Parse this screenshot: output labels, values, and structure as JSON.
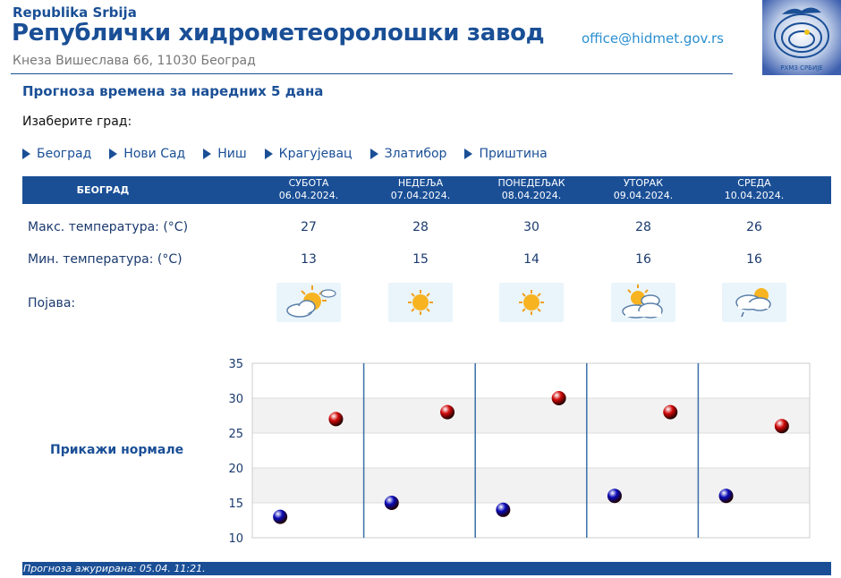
{
  "header": {
    "org_small": "Republika Srbija",
    "org_name": "Републички хидрометеоролошки завод",
    "address": "Кнеза Вишеслава 66, 11030 Београд",
    "email": "office@hidmet.gov.rs",
    "logo_text": "РХМЗ СРБИЈЕ"
  },
  "page_title": "Прогноза времена за наредних 5 дана",
  "choose_city_label": "Изаберите град:",
  "cities": [
    "Београд",
    "Нови Сад",
    "Ниш",
    "Крагујевац",
    "Златибор",
    "Приштина"
  ],
  "forecast": {
    "city": "БЕОГРАД",
    "days": [
      {
        "name": "СУБОТА",
        "date": "06.04.2024.",
        "max": "27",
        "min": "13",
        "icon": "sun-cloud-icon"
      },
      {
        "name": "НЕДЕЉА",
        "date": "07.04.2024.",
        "max": "28",
        "min": "15",
        "icon": "sun-icon"
      },
      {
        "name": "ПОНЕДЕЉАК",
        "date": "08.04.2024.",
        "max": "30",
        "min": "14",
        "icon": "sun-icon"
      },
      {
        "name": "УТОРАК",
        "date": "09.04.2024.",
        "max": "28",
        "min": "16",
        "icon": "sun-behind-clouds-icon"
      },
      {
        "name": "СРЕДА",
        "date": "10.04.2024.",
        "max": "26",
        "min": "16",
        "icon": "sun-cloud-drizzle-icon"
      }
    ],
    "labels": {
      "max": "Макс. температура: (°C)",
      "min": "Мин. температура: (°C)",
      "phenomenon": "Појава:"
    }
  },
  "show_normals_label": "Прикажи нормале",
  "chart_data": {
    "type": "scatter",
    "x": [
      "06.04.2024.",
      "07.04.2024.",
      "08.04.2024.",
      "09.04.2024.",
      "10.04.2024."
    ],
    "ylim": [
      10,
      35
    ],
    "yticks": [
      10,
      15,
      20,
      25,
      30,
      35
    ],
    "series": [
      {
        "values": [
          27,
          28,
          30,
          28,
          26
        ],
        "color": "#d10a0a"
      },
      {
        "values": [
          13,
          15,
          14,
          16,
          16
        ],
        "color": "#0a0ab8"
      }
    ],
    "band_color": "#f2f2f2",
    "divider_color": "#3a6fa8",
    "grid": true
  },
  "footer": "Прогноза ажурирана:  05.04. 11:21."
}
